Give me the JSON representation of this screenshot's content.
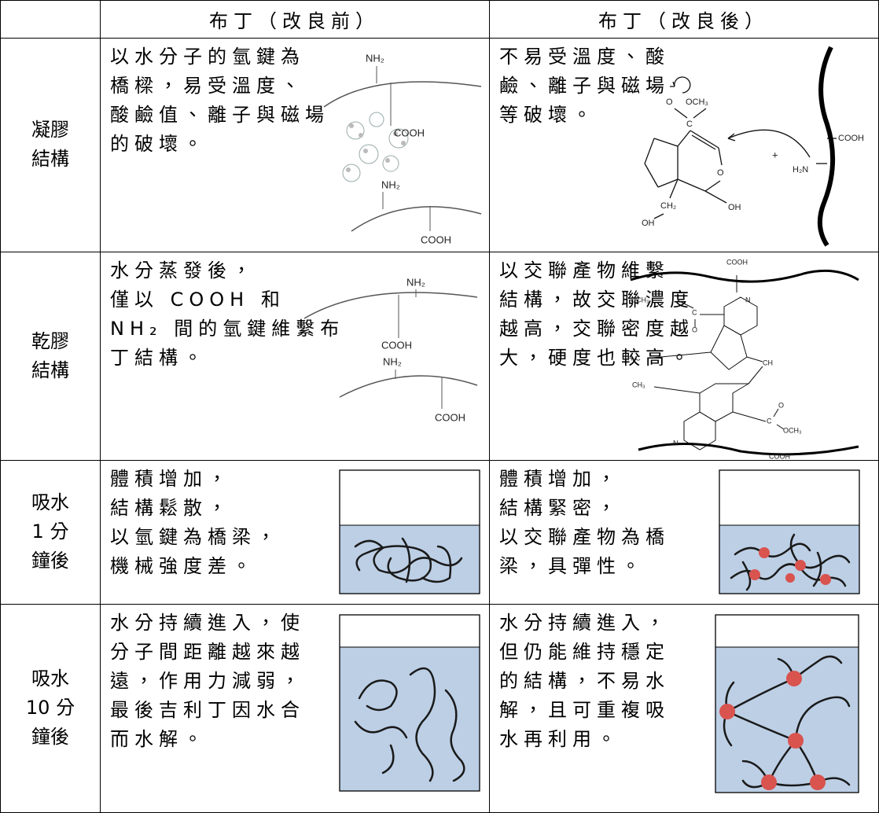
{
  "header": {
    "before": "布丁（改良前）",
    "after": "布丁（改良後）"
  },
  "rows": [
    {
      "label": [
        "凝膠",
        "結構"
      ],
      "before": {
        "text": [
          "以水分子的氫鍵為",
          "橋樑，易受溫度、",
          "酸鹼值、離子與磁場",
          "的破壞。"
        ],
        "figure_labels": [
          "NH₂",
          "COOH",
          "NH₂",
          "COOH"
        ]
      },
      "after": {
        "text": [
          "不易受溫度、酸",
          "鹼、離子與磁場",
          "等破壞。"
        ],
        "figure_labels": [
          "O",
          "OCH₃",
          "C",
          "O",
          "CH₂",
          "OH",
          "OH",
          "+",
          "H₂N",
          "COOH"
        ]
      }
    },
    {
      "label": [
        "乾膠",
        "結構"
      ],
      "before": {
        "text": [
          "水分蒸發後，",
          "僅以 COOH 和",
          "NH₂ 間的氫鍵維繫布",
          "丁結構。"
        ],
        "figure_labels": [
          "NH₂",
          "COOH",
          "NH₂",
          "COOH"
        ]
      },
      "after": {
        "text": [
          "以交聯產物維繫",
          "結構，故交聯濃度",
          "越高，交聯密度越",
          "大，硬度也較高。"
        ],
        "figure_labels": [
          "COOH",
          "OCH₃",
          "C",
          "O",
          "N",
          "H₃C",
          "CH",
          "CH₃",
          "N",
          "C",
          "O",
          "OCH₃",
          "COOH"
        ]
      }
    },
    {
      "label": [
        "吸水",
        "1 分",
        "鐘後"
      ],
      "before": {
        "text": [
          "體積增加，",
          "結構鬆散，",
          "以氫鍵為橋梁，",
          "機械強度差。"
        ]
      },
      "after": {
        "text": [
          "體積增加，",
          "結構緊密，",
          "以交聯產物為橋",
          "梁，具彈性。"
        ]
      }
    },
    {
      "label": [
        "吸水",
        "10 分",
        "鐘後"
      ],
      "before": {
        "text": [
          "水分持續進入，使",
          "分子間距離越來越",
          "遠，作用力減弱，",
          "最後吉利丁因水合",
          "而水解。"
        ]
      },
      "after": {
        "text": [
          "水分持續進入，",
          "但仍能維持穩定",
          "的結構，不易水",
          "解，且可重複吸",
          "水再利用。"
        ]
      }
    }
  ]
}
